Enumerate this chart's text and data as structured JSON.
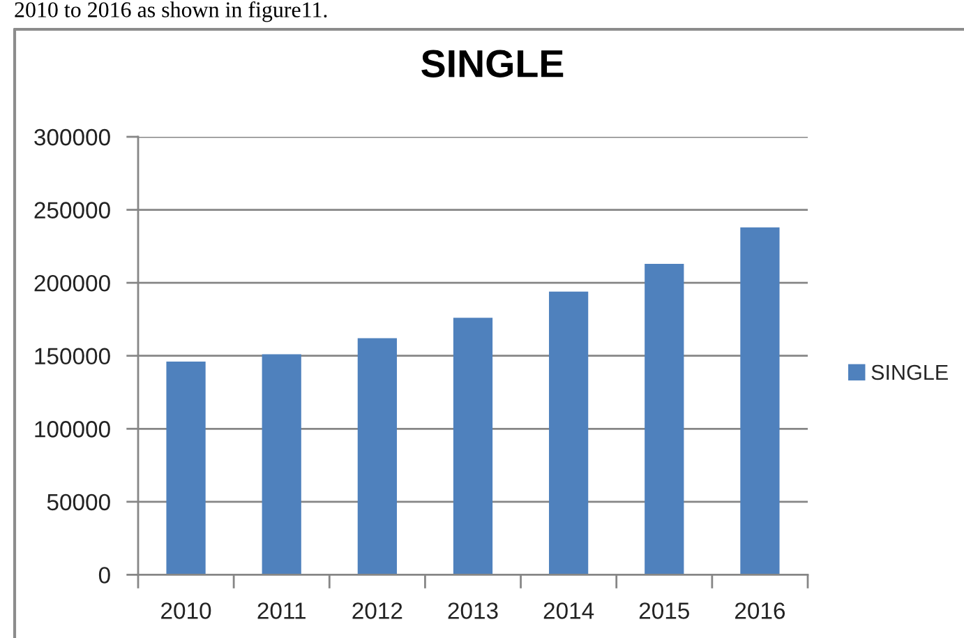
{
  "chart_data": {
    "type": "bar",
    "title": "SINGLE",
    "categories": [
      "2010",
      "2011",
      "2012",
      "2013",
      "2014",
      "2015",
      "2016"
    ],
    "series": [
      {
        "name": "SINGLE",
        "color": "#4f81bd",
        "values": [
          146000,
          151000,
          162000,
          176000,
          194000,
          213000,
          238000
        ]
      }
    ],
    "ylim": [
      0,
      300000
    ],
    "yticks": [
      0,
      50000,
      100000,
      150000,
      200000,
      250000,
      300000
    ],
    "grid": "y",
    "legend": "right",
    "annotations": [
      "2010 to 2016 as shown in figure11."
    ]
  }
}
